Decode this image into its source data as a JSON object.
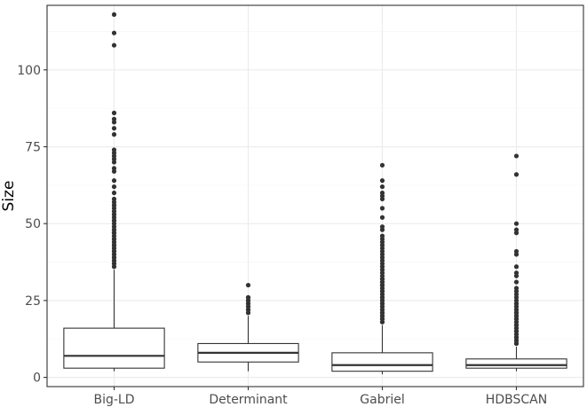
{
  "chart_data": {
    "type": "boxplot",
    "title": "",
    "xlabel": "",
    "ylabel": "Size",
    "ylim": [
      -3,
      121
    ],
    "yticks": [
      0,
      25,
      50,
      75,
      100
    ],
    "y_tick_labels": [
      "0",
      "25",
      "50",
      "75",
      "100"
    ],
    "grid": true,
    "theme": "bw",
    "categories": [
      "Big-LD",
      "Determinant",
      "Gabriel",
      "HDBSCAN"
    ],
    "boxes": [
      {
        "name": "Big-LD",
        "whisker_low": 2,
        "q1": 3,
        "median": 7,
        "q3": 16,
        "whisker_high": 35,
        "outliers": [
          36,
          37,
          37,
          38,
          38,
          39,
          39,
          40,
          40,
          41,
          41,
          42,
          42,
          43,
          43,
          44,
          44,
          45,
          45,
          46,
          47,
          47,
          48,
          48,
          49,
          50,
          51,
          51,
          52,
          53,
          53,
          54,
          55,
          56,
          56,
          57,
          58,
          60,
          62,
          64,
          67,
          68,
          70,
          71,
          72,
          73,
          74,
          79,
          81,
          83,
          84,
          86,
          108,
          112,
          118
        ]
      },
      {
        "name": "Determinant",
        "whisker_low": 2,
        "q1": 5,
        "median": 8,
        "q3": 11,
        "whisker_high": 20,
        "outliers": [
          21,
          22,
          22,
          23,
          23,
          24,
          24,
          25,
          25,
          26,
          26,
          30
        ]
      },
      {
        "name": "Gabriel",
        "whisker_low": 1,
        "q1": 2,
        "median": 4,
        "q3": 8,
        "whisker_high": 17,
        "outliers": [
          18,
          18,
          19,
          19,
          20,
          20,
          21,
          21,
          22,
          22,
          23,
          23,
          24,
          24,
          25,
          25,
          26,
          26,
          27,
          27,
          28,
          28,
          29,
          29,
          30,
          30,
          31,
          31,
          32,
          32,
          33,
          34,
          35,
          36,
          37,
          38,
          39,
          40,
          41,
          42,
          43,
          44,
          45,
          46,
          48,
          49,
          52,
          55,
          58,
          59,
          60,
          62,
          64,
          69
        ]
      },
      {
        "name": "HDBSCAN",
        "whisker_low": 2,
        "q1": 3,
        "median": 4,
        "q3": 6,
        "whisker_high": 10,
        "outliers": [
          11,
          11,
          12,
          12,
          13,
          13,
          14,
          14,
          15,
          15,
          16,
          16,
          17,
          17,
          18,
          18,
          19,
          19,
          20,
          20,
          21,
          21,
          22,
          22,
          23,
          23,
          24,
          24,
          25,
          26,
          27,
          28,
          29,
          31,
          33,
          34,
          36,
          40,
          41,
          47,
          48,
          50,
          66,
          72
        ]
      }
    ],
    "colors": {
      "panel_border": "#333333",
      "grid_major": "#ebebeb",
      "grid_minor": "#f5f5f5",
      "box_stroke": "#333333",
      "outlier": "#333333",
      "tick_text": "#4d4d4d"
    }
  }
}
